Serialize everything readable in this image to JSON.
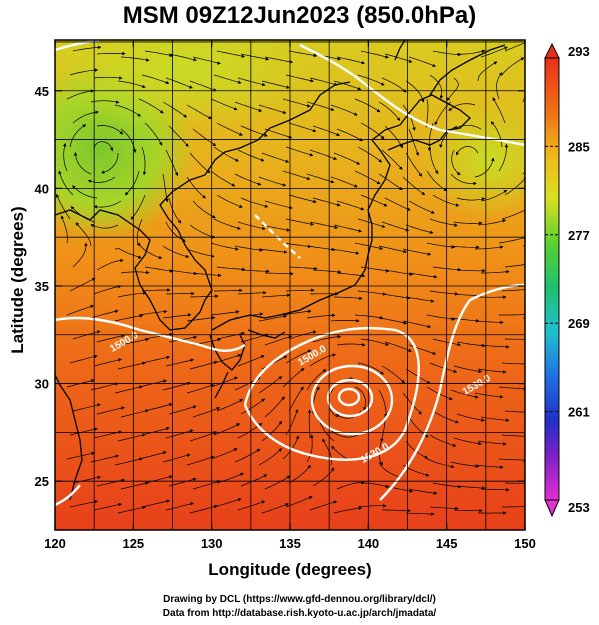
{
  "title": "MSM 09Z12Jun2023 (850.0hPa)",
  "axes": {
    "xlabel": "Longitude (degrees)",
    "ylabel": "Latitude  (degrees)",
    "xlim": [
      120,
      150
    ],
    "ylim": [
      22.5,
      47.6
    ],
    "xticks": [
      120,
      125,
      130,
      135,
      140,
      145,
      150
    ],
    "yticks": [
      25,
      30,
      35,
      40,
      45
    ],
    "grid": true
  },
  "colorbar": {
    "min": 253,
    "max": 293,
    "tick_labels": [
      "293",
      "285",
      "277",
      "269",
      "261",
      "253"
    ],
    "tick_values": [
      293,
      285,
      277,
      269,
      261,
      253
    ]
  },
  "contour_labels": [
    {
      "text": "1500.0",
      "lon": 136.5,
      "lat": 31.3
    },
    {
      "text": "1530.0",
      "lon": 140.5,
      "lat": 26.3
    },
    {
      "text": "1530.0",
      "lon": 147.0,
      "lat": 29.8
    },
    {
      "text": "1500.0",
      "lon": 124.5,
      "lat": 32.0
    }
  ],
  "credits": {
    "line1": "Drawing by DCL (https://www.gfd-dennou.org/library/dcl/)",
    "line2": "Data from http://database.rish.kyoto-u.ac.jp/arch/jmadata/"
  },
  "colors": {
    "warm": "#e83a1e",
    "mid": "#f08a14",
    "yellow": "#e8d01a",
    "green": "#9ad02a",
    "contour": "#ffffff",
    "coast": "#000000"
  }
}
